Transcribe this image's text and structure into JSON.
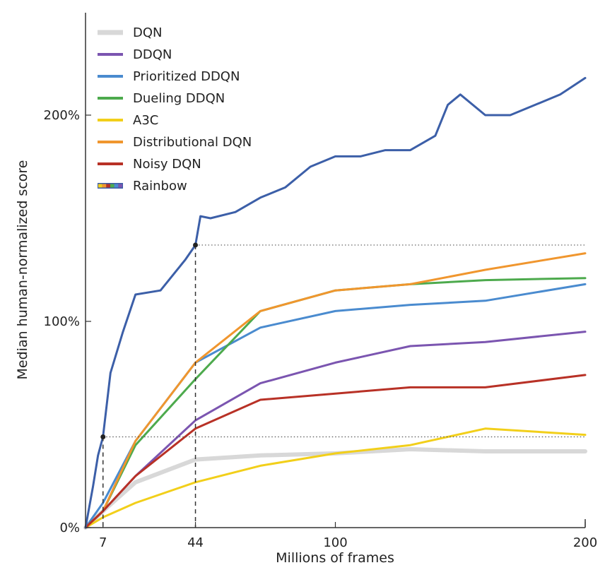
{
  "chart_data": {
    "type": "line",
    "xlabel": "Millions of frames",
    "ylabel": "Median human-normalized score",
    "xlim": [
      0,
      200
    ],
    "ylim": [
      0,
      240
    ],
    "x_ticks": [
      {
        "value": 7,
        "label": "7"
      },
      {
        "value": 44,
        "label": "44"
      },
      {
        "value": 100,
        "label": "100"
      },
      {
        "value": 200,
        "label": "200"
      }
    ],
    "y_ticks": [
      {
        "value": 0,
        "label": "0%"
      },
      {
        "value": 100,
        "label": "100%"
      },
      {
        "value": 200,
        "label": "200%"
      }
    ],
    "grid": false,
    "legend_position": "top-left",
    "reference_lines": [
      {
        "x": 7,
        "y": 44,
        "color": "#333333"
      },
      {
        "x": 44,
        "y": 137,
        "color": "#333333"
      }
    ],
    "series": [
      {
        "name": "DQN",
        "color": "#d8d8d8",
        "width": 6,
        "x": [
          0,
          7,
          20,
          44,
          70,
          100,
          130,
          160,
          200
        ],
        "y": [
          0,
          8,
          22,
          33,
          35,
          36,
          38,
          37,
          37
        ]
      },
      {
        "name": "DDQN",
        "color": "#7b55b0",
        "width": 3,
        "x": [
          0,
          7,
          20,
          44,
          70,
          100,
          130,
          160,
          200
        ],
        "y": [
          0,
          8,
          25,
          52,
          70,
          80,
          88,
          90,
          95
        ]
      },
      {
        "name": "Prioritized DDQN",
        "color": "#4a8bcf",
        "width": 3,
        "x": [
          0,
          7,
          20,
          44,
          70,
          100,
          130,
          160,
          200
        ],
        "y": [
          0,
          12,
          42,
          80,
          97,
          105,
          108,
          110,
          118
        ]
      },
      {
        "name": "Dueling DDQN",
        "color": "#4daa4d",
        "width": 3,
        "x": [
          0,
          7,
          20,
          44,
          70,
          100,
          130,
          160,
          200
        ],
        "y": [
          0,
          8,
          40,
          72,
          105,
          115,
          118,
          120,
          121
        ]
      },
      {
        "name": "A3C",
        "color": "#f2cf1a",
        "width": 3,
        "x": [
          0,
          7,
          20,
          44,
          70,
          100,
          130,
          160,
          200
        ],
        "y": [
          0,
          5,
          12,
          22,
          30,
          36,
          40,
          48,
          45
        ]
      },
      {
        "name": "Distributional DQN",
        "color": "#f0962e",
        "width": 3,
        "x": [
          0,
          7,
          20,
          44,
          70,
          100,
          130,
          160,
          200
        ],
        "y": [
          0,
          8,
          42,
          80,
          105,
          115,
          118,
          125,
          133
        ]
      },
      {
        "name": "Noisy DQN",
        "color": "#b83126",
        "width": 3,
        "x": [
          0,
          7,
          20,
          44,
          70,
          100,
          130,
          160,
          200
        ],
        "y": [
          0,
          8,
          25,
          48,
          62,
          65,
          68,
          68,
          74
        ]
      },
      {
        "name": "Rainbow",
        "color": "#3c5fa8",
        "width": 3,
        "x": [
          0,
          3,
          5,
          7,
          10,
          15,
          20,
          30,
          40,
          44,
          46,
          50,
          60,
          70,
          80,
          90,
          100,
          110,
          120,
          130,
          140,
          145,
          150,
          160,
          170,
          180,
          190,
          200
        ],
        "y": [
          0,
          20,
          35,
          44,
          75,
          95,
          113,
          115,
          130,
          137,
          151,
          150,
          153,
          160,
          165,
          175,
          180,
          180,
          183,
          183,
          190,
          205,
          210,
          200,
          200,
          205,
          210,
          218
        ]
      }
    ]
  }
}
